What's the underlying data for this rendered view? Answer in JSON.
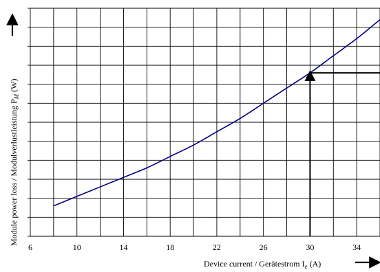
{
  "chart_data": {
    "type": "line",
    "xlabel_main": "Device current / Gerätestrom I",
    "xlabel_sub": "e",
    "xlabel_unit": " (A)",
    "ylabel_main": "Module power loss / Modulverlustleistung P",
    "ylabel_sub": "M",
    "ylabel_unit": " (W)",
    "x_ticks": [
      "6",
      "10",
      "14",
      "18",
      "22",
      "26",
      "30",
      "34"
    ],
    "xlim": [
      6,
      36
    ],
    "ylim": [
      0,
      12
    ],
    "grid": true,
    "series": [
      {
        "color": "#000080",
        "x": [
          8,
          10,
          12,
          14,
          16,
          18,
          20,
          22,
          24,
          26,
          28,
          30,
          32,
          34,
          36
        ],
        "y": [
          1.6,
          2.1,
          2.6,
          3.1,
          3.6,
          4.2,
          4.8,
          5.5,
          6.2,
          7.0,
          7.8,
          8.6,
          9.5,
          10.4,
          11.4
        ]
      }
    ],
    "annotation": {
      "x": 30,
      "y": 8.6,
      "color": "#000000"
    }
  }
}
